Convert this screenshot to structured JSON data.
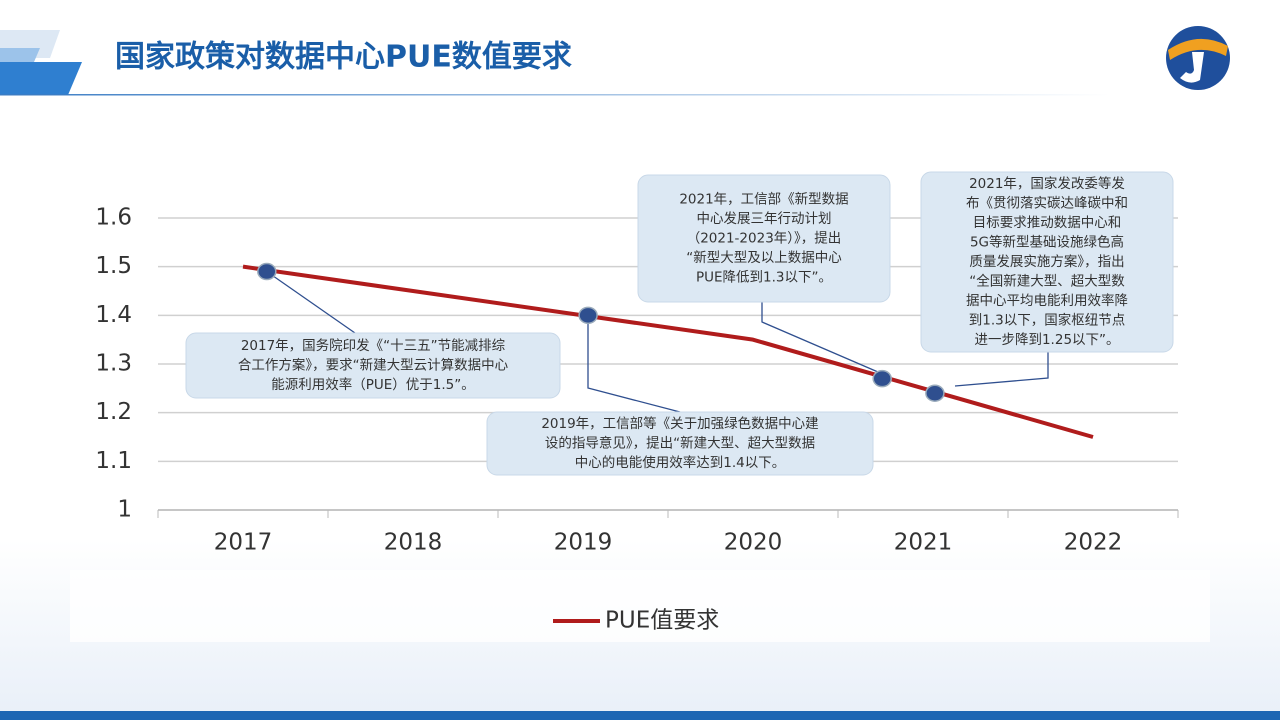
{
  "header": {
    "title": "国家政策对数据中心PUE数值要求"
  },
  "chart_data": {
    "type": "line",
    "categories": [
      "2017",
      "2018",
      "2019",
      "2020",
      "2021",
      "2022"
    ],
    "series": [
      {
        "name": "PUE值要求",
        "color": "#b01c1c",
        "values": [
          1.5,
          1.45,
          1.4,
          1.35,
          1.25,
          1.15
        ]
      }
    ],
    "markers": {
      "color": "#2f4f8f",
      "x": [
        2017.14,
        2019.03,
        2020.76,
        2021.07
      ],
      "values": [
        1.49,
        1.4,
        1.27,
        1.24
      ]
    },
    "ylim": [
      1,
      1.6
    ],
    "yticks": [
      1,
      1.1,
      1.2,
      1.3,
      1.4,
      1.5,
      1.6
    ],
    "grid": true,
    "annotations": [
      [
        "2017年，国务院印发《“十三五”节能减排综",
        "合工作方案》，要求“新建大型云计算数据中心",
        "能源利用效率（PUE）优于1.5”。"
      ],
      [
        "2019年，工信部等《关于加强绿色数据中心建",
        "设的指导意见》，提出“新建大型、超大型数据",
        "中心的电能使用效率达到1.4以下。"
      ],
      [
        "2021年，工信部《新型数据",
        "中心发展三年行动计划",
        "（2021-2023年）》，提出",
        "“新型大型及以上数据中心",
        "PUE降低到1.3以下”。"
      ],
      [
        "2021年，国家发改委等发",
        "布《贯彻落实碳达峰碳中和",
        "目标要求推动数据中心和",
        "5G等新型基础设施绿色高",
        "质量发展实施方案》，指出",
        "“全国新建大型、超大型数",
        "据中心平均电能利用效率降",
        "到1.3以下，国家枢纽节点",
        "进一步降到1.25以下”。"
      ]
    ]
  }
}
